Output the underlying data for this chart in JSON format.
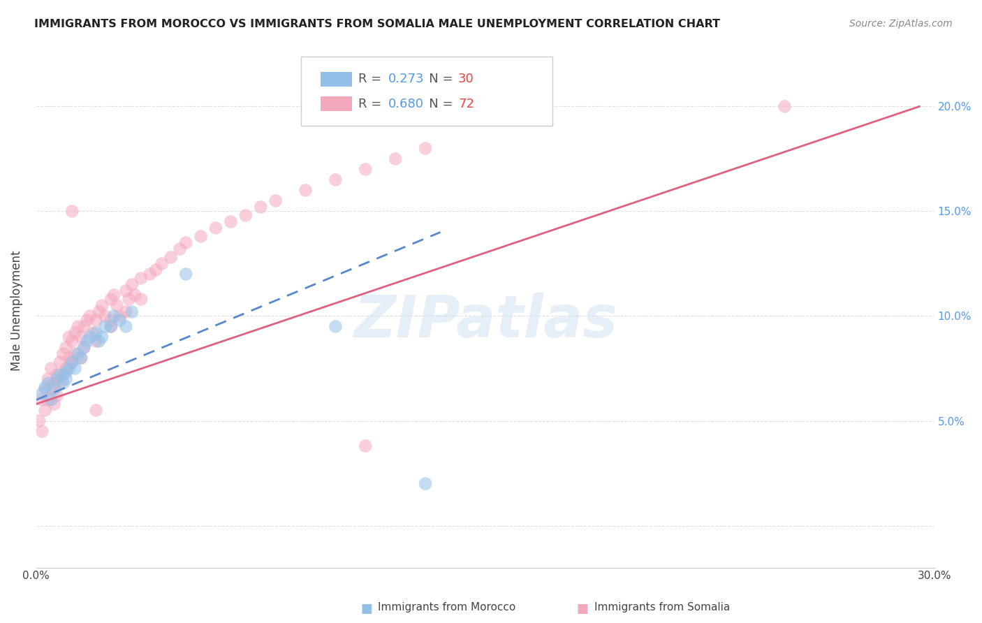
{
  "title": "IMMIGRANTS FROM MOROCCO VS IMMIGRANTS FROM SOMALIA MALE UNEMPLOYMENT CORRELATION CHART",
  "source": "Source: ZipAtlas.com",
  "ylabel": "Male Unemployment",
  "watermark": "ZIPatlas",
  "xlim": [
    0.0,
    0.3
  ],
  "ylim": [
    -0.02,
    0.225
  ],
  "morocco_color": "#92c0e8",
  "somalia_color": "#f4a8bc",
  "morocco_line_color": "#5588cc",
  "somalia_line_color": "#e06080",
  "background_color": "#ffffff",
  "grid_color": "#e0e0e0",
  "legend_R_morocco": "0.273",
  "legend_N_morocco": "30",
  "legend_R_somalia": "0.680",
  "legend_N_somalia": "72",
  "morocco_scatter_x": [
    0.002,
    0.003,
    0.004,
    0.005,
    0.006,
    0.007,
    0.008,
    0.009,
    0.01,
    0.01,
    0.011,
    0.012,
    0.013,
    0.014,
    0.015,
    0.016,
    0.017,
    0.018,
    0.02,
    0.021,
    0.022,
    0.023,
    0.025,
    0.026,
    0.028,
    0.03,
    0.032,
    0.05,
    0.1,
    0.13
  ],
  "morocco_scatter_y": [
    0.063,
    0.066,
    0.068,
    0.06,
    0.065,
    0.07,
    0.072,
    0.068,
    0.073,
    0.07,
    0.075,
    0.078,
    0.075,
    0.082,
    0.08,
    0.085,
    0.088,
    0.09,
    0.092,
    0.088,
    0.09,
    0.095,
    0.095,
    0.1,
    0.098,
    0.095,
    0.102,
    0.12,
    0.095,
    0.02
  ],
  "somalia_scatter_x": [
    0.001,
    0.002,
    0.002,
    0.003,
    0.003,
    0.004,
    0.004,
    0.005,
    0.005,
    0.006,
    0.006,
    0.007,
    0.007,
    0.008,
    0.008,
    0.009,
    0.009,
    0.01,
    0.01,
    0.011,
    0.011,
    0.012,
    0.012,
    0.013,
    0.013,
    0.014,
    0.015,
    0.015,
    0.016,
    0.016,
    0.017,
    0.018,
    0.019,
    0.02,
    0.02,
    0.021,
    0.022,
    0.023,
    0.025,
    0.025,
    0.026,
    0.027,
    0.028,
    0.03,
    0.03,
    0.031,
    0.032,
    0.033,
    0.035,
    0.035,
    0.038,
    0.04,
    0.042,
    0.045,
    0.048,
    0.05,
    0.055,
    0.06,
    0.065,
    0.07,
    0.075,
    0.08,
    0.09,
    0.1,
    0.11,
    0.12,
    0.13,
    0.012,
    0.02,
    0.025,
    0.11,
    0.25
  ],
  "somalia_scatter_y": [
    0.05,
    0.045,
    0.06,
    0.055,
    0.065,
    0.06,
    0.07,
    0.065,
    0.075,
    0.068,
    0.058,
    0.072,
    0.062,
    0.078,
    0.068,
    0.082,
    0.072,
    0.085,
    0.075,
    0.09,
    0.08,
    0.088,
    0.078,
    0.092,
    0.082,
    0.095,
    0.09,
    0.08,
    0.095,
    0.085,
    0.098,
    0.1,
    0.092,
    0.098,
    0.088,
    0.102,
    0.105,
    0.1,
    0.108,
    0.098,
    0.11,
    0.105,
    0.1,
    0.112,
    0.102,
    0.108,
    0.115,
    0.11,
    0.118,
    0.108,
    0.12,
    0.122,
    0.125,
    0.128,
    0.132,
    0.135,
    0.138,
    0.142,
    0.145,
    0.148,
    0.152,
    0.155,
    0.16,
    0.165,
    0.17,
    0.175,
    0.18,
    0.15,
    0.055,
    0.095,
    0.038,
    0.2
  ],
  "morocco_line_x": [
    0.0,
    0.135
  ],
  "morocco_line_y": [
    0.06,
    0.14
  ],
  "somalia_line_x": [
    0.0,
    0.295
  ],
  "somalia_line_y": [
    0.058,
    0.2
  ]
}
